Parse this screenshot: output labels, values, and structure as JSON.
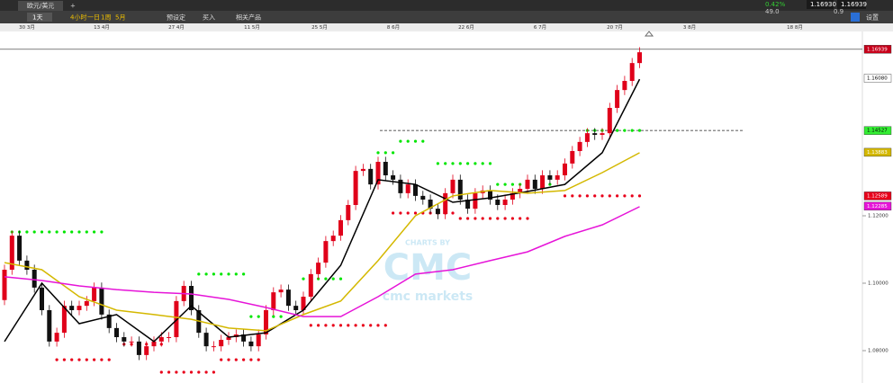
{
  "toolbar": {
    "tab": "欧元/美元",
    "new_tab": "+",
    "interval": "1天",
    "timeframes": [
      "4小时",
      "一日",
      "1周",
      "5月"
    ],
    "buttons": [
      "预设定",
      "买入",
      "相关产品"
    ],
    "change": "0.42%",
    "spread_info": [
      "49.0",
      "0.9"
    ],
    "sell": "1.16930",
    "buy": "1.16939",
    "settings": "设置"
  },
  "chart_data": {
    "type": "candlestick",
    "x_labels": [
      "30 3月",
      "13 4月",
      "27 4月",
      "11 5月",
      "25 5月",
      "8 6月",
      "22 6月",
      "6 7月",
      "20 7月",
      "3 8月",
      "18 8月"
    ],
    "ylim": [
      1.0704,
      1.17467
    ],
    "yticks": [
      {
        "value": 1.12,
        "label": "1.12000"
      },
      {
        "value": 1.1,
        "label": "1.10000"
      },
      {
        "value": 1.08,
        "label": "1.08000"
      }
    ],
    "up_color": "#e0001a",
    "down_color": "#111111",
    "open": [
      1.095,
      1.104,
      1.1141,
      1.1067,
      1.104,
      1.0987,
      1.092,
      1.0827,
      1.0853,
      1.0933,
      1.092,
      1.0933,
      1.0947,
      1.0987,
      1.0907,
      1.0867,
      1.084,
      1.0827,
      1.0827,
      1.0787,
      1.0813,
      1.0827,
      1.084,
      1.084,
      1.0947,
      1.0992,
      1.092,
      1.0853,
      1.0813,
      1.0813,
      1.0832,
      1.084,
      1.0848,
      1.0827,
      1.0813,
      1.0848,
      1.092,
      1.0973,
      1.0981,
      1.0933,
      1.092,
      1.096,
      1.1027,
      1.1061,
      1.1125,
      1.1141,
      1.1187,
      1.1232,
      1.1333,
      1.1339,
      1.1293,
      1.136,
      1.132,
      1.1307,
      1.1267,
      1.1293,
      1.1259,
      1.1248,
      1.1221,
      1.1205,
      1.1267,
      1.1307,
      1.1248,
      1.1221,
      1.1267,
      1.1275,
      1.1248,
      1.1232,
      1.1248,
      1.1267,
      1.128,
      1.1307,
      1.128,
      1.132,
      1.1307,
      1.132,
      1.1355,
      1.1392,
      1.1419,
      1.1445,
      1.144,
      1.1445,
      1.152,
      1.1573,
      1.16,
      1.1653
    ],
    "high": [
      1.1055,
      1.1156,
      1.1156,
      1.1082,
      1.1055,
      1.1002,
      1.0935,
      1.0868,
      1.0948,
      1.0948,
      1.0948,
      1.0962,
      1.1002,
      1.1002,
      1.0922,
      1.0882,
      1.0855,
      1.0842,
      1.0842,
      1.0828,
      1.0842,
      1.0855,
      1.0855,
      1.0962,
      1.1007,
      1.1007,
      1.0935,
      1.0868,
      1.0828,
      1.0847,
      1.0855,
      1.0863,
      1.0863,
      1.0842,
      1.0863,
      1.0935,
      1.0988,
      1.0996,
      1.0996,
      1.0948,
      1.0975,
      1.1042,
      1.1076,
      1.114,
      1.1156,
      1.1202,
      1.1247,
      1.1348,
      1.1354,
      1.1354,
      1.1375,
      1.1375,
      1.1335,
      1.1322,
      1.1308,
      1.1308,
      1.1274,
      1.1263,
      1.1236,
      1.1282,
      1.1322,
      1.1322,
      1.1263,
      1.1282,
      1.129,
      1.129,
      1.1263,
      1.1263,
      1.1282,
      1.1295,
      1.1322,
      1.1322,
      1.1335,
      1.1335,
      1.1335,
      1.137,
      1.1407,
      1.1434,
      1.146,
      1.146,
      1.146,
      1.1535,
      1.1588,
      1.1615,
      1.1668,
      1.17
    ],
    "low": [
      1.0935,
      1.1025,
      1.1052,
      1.1025,
      1.0972,
      1.0905,
      1.0812,
      1.0812,
      1.0838,
      1.0905,
      1.0905,
      1.0918,
      1.0932,
      1.0892,
      1.0852,
      1.0825,
      1.0812,
      1.0812,
      1.0772,
      1.0772,
      1.0798,
      1.0812,
      1.0825,
      1.0825,
      1.0932,
      1.0905,
      1.0838,
      1.0798,
      1.0798,
      1.0798,
      1.0817,
      1.0825,
      1.0812,
      1.0798,
      1.0798,
      1.0833,
      1.0905,
      1.0958,
      1.0918,
      1.0905,
      1.0905,
      1.0945,
      1.1012,
      1.1046,
      1.111,
      1.1126,
      1.1172,
      1.1217,
      1.1318,
      1.1278,
      1.1278,
      1.1305,
      1.1292,
      1.1252,
      1.1252,
      1.1244,
      1.1233,
      1.1206,
      1.119,
      1.119,
      1.1252,
      1.1233,
      1.1206,
      1.1206,
      1.1252,
      1.1233,
      1.1217,
      1.1217,
      1.1233,
      1.1252,
      1.1265,
      1.1265,
      1.1265,
      1.1292,
      1.1292,
      1.1305,
      1.134,
      1.1377,
      1.1404,
      1.1425,
      1.1425,
      1.143,
      1.1505,
      1.1558,
      1.1585,
      1.1638
    ],
    "close": [
      1.104,
      1.1141,
      1.1067,
      1.104,
      1.0987,
      1.092,
      1.0827,
      1.0853,
      1.0933,
      1.092,
      1.0933,
      1.0947,
      1.0987,
      1.0907,
      1.0867,
      1.084,
      1.0827,
      1.0827,
      1.0787,
      1.0813,
      1.0827,
      1.084,
      1.084,
      1.0947,
      1.0992,
      1.092,
      1.0853,
      1.0813,
      1.0813,
      1.0832,
      1.084,
      1.0848,
      1.0827,
      1.0813,
      1.0848,
      1.092,
      1.0973,
      1.0981,
      1.0933,
      1.092,
      1.096,
      1.1027,
      1.1061,
      1.1125,
      1.1141,
      1.1187,
      1.1232,
      1.1333,
      1.1339,
      1.1293,
      1.136,
      1.132,
      1.1307,
      1.1267,
      1.1293,
      1.1259,
      1.1248,
      1.1221,
      1.1205,
      1.1267,
      1.1307,
      1.1248,
      1.1221,
      1.1267,
      1.1275,
      1.1248,
      1.1232,
      1.1248,
      1.1267,
      1.128,
      1.1307,
      1.128,
      1.132,
      1.1307,
      1.132,
      1.1355,
      1.1392,
      1.1419,
      1.1445,
      1.144,
      1.1445,
      1.152,
      1.1573,
      1.16,
      1.1653,
      1.1685
    ],
    "ma_x": [
      0,
      5,
      10,
      15,
      20,
      25,
      30,
      35,
      40,
      45,
      50,
      55,
      60,
      65,
      70,
      75,
      80,
      85
    ],
    "series": [
      {
        "color": "#000000",
        "values": [
          1.0827,
          1.1,
          1.088,
          1.0907,
          1.0827,
          1.0933,
          1.084,
          1.0853,
          1.092,
          1.1053,
          1.1307,
          1.1293,
          1.124,
          1.1253,
          1.1272,
          1.1293,
          1.1387,
          1.1605
        ]
      },
      {
        "color": "#d4b800",
        "values": [
          1.1061,
          1.104,
          1.096,
          1.092,
          1.0907,
          1.0893,
          1.0867,
          1.0859,
          1.0907,
          1.0947,
          1.1067,
          1.12,
          1.1259,
          1.1275,
          1.1267,
          1.1275,
          1.1328,
          1.1387
        ]
      },
      {
        "color": "#e614d8",
        "values": [
          1.1019,
          1.1008,
          1.0992,
          1.0981,
          1.0973,
          1.0968,
          1.0952,
          1.0928,
          1.0901,
          1.0901,
          1.096,
          1.1027,
          1.104,
          1.1067,
          1.1093,
          1.1139,
          1.1173,
          1.1227
        ]
      }
    ],
    "green_dots": {
      "color": "#00e600",
      "segments": [
        {
          "start": 1,
          "end": 13,
          "value": 1.1152
        },
        {
          "start": 26,
          "end": 32,
          "value": 1.1027
        },
        {
          "start": 33,
          "end": 37,
          "value": 1.0901
        },
        {
          "start": 40,
          "end": 45,
          "value": 1.1013
        },
        {
          "start": 50,
          "end": 52,
          "value": 1.1387
        },
        {
          "start": 53,
          "end": 56,
          "value": 1.1421
        },
        {
          "start": 58,
          "end": 65,
          "value": 1.1355
        },
        {
          "start": 66,
          "end": 73,
          "value": 1.1293
        },
        {
          "start": 78,
          "end": 85,
          "value": 1.1453
        }
      ]
    },
    "red_dots": {
      "color": "#e8001a",
      "segments": [
        {
          "start": 7,
          "end": 14,
          "value": 1.0773
        },
        {
          "start": 16,
          "end": 21,
          "value": 1.0819
        },
        {
          "start": 21,
          "end": 28,
          "value": 1.0736
        },
        {
          "start": 29,
          "end": 34,
          "value": 1.0773
        },
        {
          "start": 41,
          "end": 51,
          "value": 1.0875
        },
        {
          "start": 52,
          "end": 60,
          "value": 1.1208
        },
        {
          "start": 61,
          "end": 70,
          "value": 1.1192
        },
        {
          "start": 75,
          "end": 85,
          "value": 1.1259
        }
      ]
    },
    "reference_line": 1.1453,
    "price_tags": [
      {
        "value": 1.16939,
        "label": "1.16939",
        "color": "#c8001a"
      },
      {
        "value": 1.1608,
        "label": "1.16080",
        "color": "#ffffff"
      },
      {
        "value": 1.14527,
        "label": "1.14527",
        "color": "#33ee33"
      },
      {
        "value": 1.13883,
        "label": "1.13883",
        "color": "#d4b800"
      },
      {
        "value": 1.12589,
        "label": "1.12589",
        "color": "#e8001a"
      },
      {
        "value": 1.12285,
        "label": "1.12285",
        "color": "#e614d8"
      }
    ],
    "watermark": [
      "CHARTS BY",
      "CMC",
      "cmc markets"
    ]
  }
}
